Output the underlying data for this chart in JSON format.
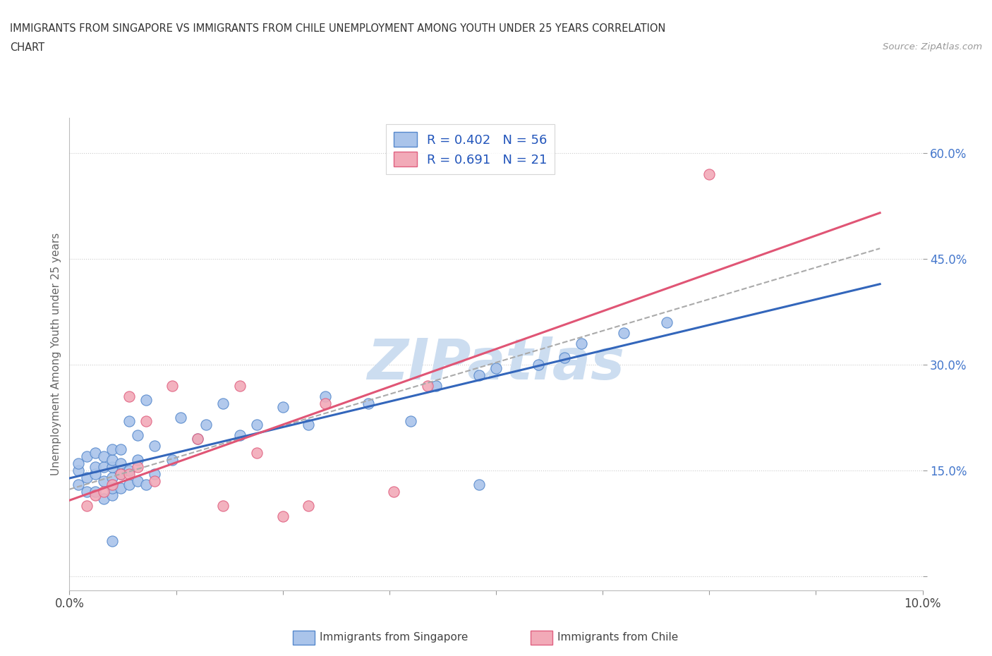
{
  "title_line1": "IMMIGRANTS FROM SINGAPORE VS IMMIGRANTS FROM CHILE UNEMPLOYMENT AMONG YOUTH UNDER 25 YEARS CORRELATION",
  "title_line2": "CHART",
  "source": "Source: ZipAtlas.com",
  "ylabel": "Unemployment Among Youth under 25 years",
  "xlim": [
    0.0,
    0.1
  ],
  "ylim": [
    -0.02,
    0.65
  ],
  "yticks": [
    0.0,
    0.15,
    0.3,
    0.45,
    0.6
  ],
  "ytick_labels": [
    "",
    "15.0%",
    "30.0%",
    "45.0%",
    "60.0%"
  ],
  "xticks": [
    0.0,
    0.1
  ],
  "xtick_labels": [
    "0.0%",
    "10.0%"
  ],
  "legend_r1": "R = 0.402",
  "legend_n1": "N = 56",
  "legend_r2": "R = 0.691",
  "legend_n2": "N = 21",
  "singapore_color": "#aac4ea",
  "chile_color": "#f2aab8",
  "singapore_edge_color": "#5588cc",
  "chile_edge_color": "#e06080",
  "singapore_line_color": "#3366bb",
  "chile_line_color": "#e05575",
  "dash_line_color": "#aaaaaa",
  "watermark_color": "#ccddf0",
  "watermark": "ZIPatlas",
  "background_color": "#ffffff",
  "grid_color": "#cccccc",
  "singapore_x": [
    0.001,
    0.001,
    0.001,
    0.002,
    0.002,
    0.002,
    0.003,
    0.003,
    0.003,
    0.003,
    0.004,
    0.004,
    0.004,
    0.004,
    0.005,
    0.005,
    0.005,
    0.005,
    0.005,
    0.005,
    0.006,
    0.006,
    0.006,
    0.006,
    0.007,
    0.007,
    0.007,
    0.008,
    0.008,
    0.008,
    0.009,
    0.009,
    0.01,
    0.01,
    0.012,
    0.013,
    0.015,
    0.016,
    0.018,
    0.02,
    0.022,
    0.025,
    0.028,
    0.03,
    0.035,
    0.04,
    0.043,
    0.048,
    0.05,
    0.055,
    0.058,
    0.06,
    0.065,
    0.07,
    0.005,
    0.048
  ],
  "singapore_y": [
    0.13,
    0.15,
    0.16,
    0.12,
    0.14,
    0.17,
    0.12,
    0.145,
    0.155,
    0.175,
    0.11,
    0.135,
    0.155,
    0.17,
    0.115,
    0.125,
    0.14,
    0.155,
    0.165,
    0.18,
    0.125,
    0.145,
    0.16,
    0.18,
    0.13,
    0.15,
    0.22,
    0.135,
    0.165,
    0.2,
    0.13,
    0.25,
    0.145,
    0.185,
    0.165,
    0.225,
    0.195,
    0.215,
    0.245,
    0.2,
    0.215,
    0.24,
    0.215,
    0.255,
    0.245,
    0.22,
    0.27,
    0.285,
    0.295,
    0.3,
    0.31,
    0.33,
    0.345,
    0.36,
    0.05,
    0.13
  ],
  "chile_x": [
    0.002,
    0.003,
    0.004,
    0.005,
    0.006,
    0.007,
    0.007,
    0.008,
    0.009,
    0.01,
    0.012,
    0.015,
    0.018,
    0.02,
    0.022,
    0.025,
    0.028,
    0.03,
    0.038,
    0.042,
    0.075
  ],
  "chile_y": [
    0.1,
    0.115,
    0.12,
    0.13,
    0.145,
    0.145,
    0.255,
    0.155,
    0.22,
    0.135,
    0.27,
    0.195,
    0.1,
    0.27,
    0.175,
    0.085,
    0.1,
    0.245,
    0.12,
    0.27,
    0.57
  ]
}
